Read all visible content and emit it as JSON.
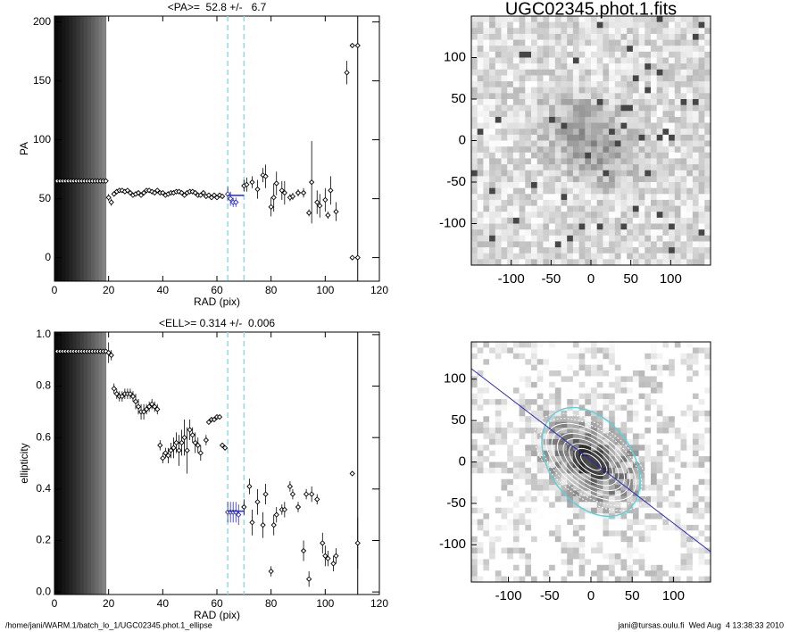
{
  "chart_data": [
    {
      "type": "errorbar",
      "title": "<PA>=  52.8 +/-   6.7",
      "xlabel": "RAD (pix)",
      "ylabel": "PA",
      "mean": 52.8,
      "xlim": [
        0,
        120
      ],
      "ylim": [
        -20,
        205
      ],
      "xticks": [
        0,
        20,
        40,
        60,
        80,
        100,
        120
      ],
      "yticks": [
        0,
        50,
        100,
        150,
        200
      ],
      "shade_xlim": [
        0,
        19
      ],
      "dashed_lines": [
        64,
        70
      ],
      "solid_line": 112,
      "color": "#000000",
      "fit_color": "#2a2ab8",
      "dashed_color": "#7fe0ee",
      "x": [
        1,
        2,
        3,
        4,
        5,
        6,
        7,
        8,
        9,
        10,
        11,
        12,
        13,
        14,
        15,
        16,
        17,
        18,
        19,
        20,
        21,
        22,
        23,
        24,
        25,
        26,
        27,
        28,
        29,
        30,
        31,
        32,
        33,
        34,
        35,
        36,
        37,
        38,
        39,
        40,
        41,
        42,
        43,
        44,
        45,
        46,
        47,
        48,
        49,
        50,
        51,
        52,
        53,
        54,
        55,
        56,
        57,
        58,
        59,
        60,
        61,
        62,
        64,
        65,
        66,
        67,
        70,
        71,
        73,
        75,
        77,
        78,
        80,
        81,
        82,
        84,
        85,
        87,
        88,
        90,
        92,
        94,
        95,
        97,
        98,
        100,
        101,
        102,
        104,
        108,
        110,
        110,
        112,
        112
      ],
      "values": [
        65,
        65,
        65,
        65,
        65,
        65,
        65,
        65,
        65,
        65,
        65,
        65,
        65,
        65,
        65,
        65,
        65,
        65,
        65,
        51,
        47,
        54,
        56,
        57,
        57,
        56,
        57,
        55,
        53,
        54,
        55,
        53,
        55,
        57,
        57,
        56,
        55,
        57,
        55,
        55,
        53,
        54,
        55,
        55,
        56,
        56,
        55,
        53,
        55,
        56,
        56,
        55,
        53,
        53,
        55,
        52,
        53,
        51,
        53,
        51,
        53,
        52,
        54,
        50,
        47,
        47,
        61,
        62,
        64,
        58,
        70,
        69,
        43,
        51,
        63,
        57,
        55,
        51,
        52,
        55,
        55,
        38,
        64,
        47,
        44,
        49,
        36,
        57,
        39,
        157,
        180,
        0,
        180,
        0
      ],
      "errors": [
        0,
        0,
        0,
        0,
        0,
        0,
        0,
        0,
        0,
        0,
        0,
        0,
        0,
        0,
        0,
        0,
        0,
        0,
        0,
        3,
        3,
        2,
        2,
        2,
        2,
        2,
        2,
        2,
        2,
        2,
        2,
        2,
        2,
        2,
        2,
        2,
        2,
        2,
        2,
        2,
        2,
        2,
        2,
        2,
        2,
        2,
        2,
        2,
        2,
        2,
        2,
        2,
        2,
        2,
        2,
        2,
        2,
        2,
        2,
        2,
        2,
        2,
        6,
        6,
        4,
        4,
        5,
        6,
        5,
        8,
        6,
        10,
        8,
        12,
        10,
        8,
        10,
        3,
        3,
        3,
        4,
        3,
        35,
        10,
        10,
        10,
        3,
        12,
        8,
        10,
        0,
        0,
        0,
        0
      ]
    },
    {
      "type": "image",
      "title": "UGC02345.phot.1.fits",
      "xlim": [
        -150,
        150
      ],
      "ylim": [
        -150,
        150
      ],
      "xticks": [
        -100,
        -50,
        0,
        50,
        100
      ],
      "yticks": [
        -100,
        -50,
        0,
        50,
        100
      ]
    },
    {
      "type": "errorbar",
      "title": "<ELL>= 0.314 +/-  0.006",
      "xlabel": "RAD (pix)",
      "ylabel": "ellipticity",
      "mean": 0.314,
      "xlim": [
        0,
        120
      ],
      "ylim": [
        -0.01,
        1.01
      ],
      "xticks": [
        0,
        20,
        40,
        60,
        80,
        100,
        120
      ],
      "yticks": [
        {
          "value": 0,
          "label": "0.0"
        },
        0.2,
        0.4,
        0.6,
        0.8,
        {
          "value": 1,
          "label": "1.0"
        }
      ],
      "shade_xlim": [
        0,
        19
      ],
      "dashed_lines": [
        64,
        70
      ],
      "solid_line": 112,
      "color": "#000000",
      "fit_color": "#2a2ab8",
      "dashed_color": "#7fe0ee",
      "x": [
        1,
        2,
        3,
        4,
        5,
        6,
        7,
        8,
        9,
        10,
        11,
        12,
        13,
        14,
        15,
        16,
        17,
        18,
        19,
        20,
        21,
        22,
        23,
        24,
        25,
        26,
        27,
        28,
        29,
        30,
        31,
        32,
        33,
        34,
        35,
        36,
        37,
        38,
        39,
        40,
        41,
        42,
        43,
        44,
        45,
        46,
        47,
        48,
        49,
        50,
        51,
        52,
        53,
        54,
        56,
        57,
        58,
        59,
        60,
        61,
        62,
        63,
        64,
        65,
        66,
        67,
        68,
        70,
        72,
        73,
        75,
        77,
        78,
        80,
        81,
        82,
        84,
        85,
        87,
        88,
        90,
        92,
        93,
        94,
        95,
        97,
        99,
        100,
        101,
        103,
        104,
        110,
        112
      ],
      "values": [
        0.935,
        0.935,
        0.935,
        0.935,
        0.935,
        0.935,
        0.935,
        0.935,
        0.935,
        0.935,
        0.935,
        0.935,
        0.935,
        0.935,
        0.935,
        0.935,
        0.935,
        0.935,
        0.935,
        0.93,
        0.92,
        0.79,
        0.77,
        0.76,
        0.76,
        0.77,
        0.77,
        0.77,
        0.76,
        0.74,
        0.72,
        0.7,
        0.7,
        0.71,
        0.72,
        0.73,
        0.72,
        0.71,
        0.57,
        0.52,
        0.54,
        0.53,
        0.55,
        0.56,
        0.58,
        0.55,
        0.58,
        0.6,
        0.55,
        0.63,
        0.61,
        0.58,
        0.57,
        0.54,
        0.59,
        0.66,
        0.67,
        0.67,
        0.68,
        0.68,
        0.57,
        0.56,
        0.31,
        0.31,
        0.31,
        0.31,
        0.3,
        0.33,
        0.41,
        0.27,
        0.35,
        0.26,
        0.38,
        0.08,
        0.26,
        0.3,
        0.32,
        0.32,
        0.41,
        0.38,
        0.33,
        0.16,
        0.38,
        0.05,
        0.38,
        0.36,
        0.19,
        0.14,
        0.13,
        0.11,
        0.14,
        0.46,
        0.19
      ],
      "errors": [
        0,
        0,
        0,
        0,
        0,
        0,
        0,
        0,
        0,
        0,
        0,
        0,
        0,
        0,
        0,
        0,
        0,
        0,
        0,
        0.04,
        0.02,
        0.02,
        0.02,
        0.02,
        0.02,
        0.02,
        0.02,
        0.02,
        0.02,
        0.03,
        0.03,
        0.03,
        0.03,
        0.02,
        0.02,
        0.02,
        0.02,
        0.02,
        0.02,
        0.02,
        0.02,
        0.03,
        0.03,
        0.04,
        0.04,
        0.06,
        0.05,
        0.07,
        0.09,
        0.04,
        0.03,
        0.04,
        0.03,
        0.03,
        0.02,
        0.01,
        0.01,
        0.01,
        0.01,
        0.01,
        0.01,
        0.01,
        0.04,
        0.04,
        0.04,
        0.04,
        0.04,
        0.03,
        0.03,
        0.05,
        0.05,
        0.05,
        0.04,
        0.02,
        0.04,
        0.03,
        0.02,
        0.03,
        0.02,
        0.02,
        0.02,
        0.04,
        0.02,
        0.03,
        0.03,
        0.02,
        0.04,
        0.04,
        0.03,
        0.03,
        0.03,
        0,
        0.1
      ]
    },
    {
      "type": "image",
      "xlim": [
        -145,
        145
      ],
      "ylim": [
        -145,
        145
      ],
      "xticks": [
        -100,
        -50,
        0,
        50,
        100
      ],
      "yticks": [
        -100,
        -50,
        0,
        50,
        100
      ]
    }
  ],
  "footer": {
    "left": "/home/jani/WARM.1/batch_lo_1/UGC02345.phot.1_ellipse",
    "right": "jani@tursas.oulu.fi  Wed Aug  4 13:38:33 2010"
  }
}
